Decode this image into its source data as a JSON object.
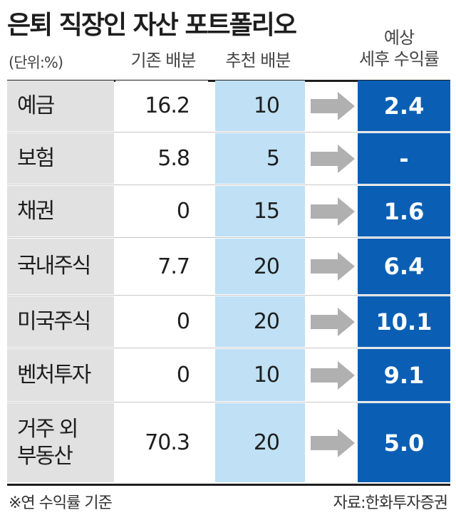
{
  "title": "은퇴 직장인 자산 포트폴리오",
  "unit": "(단위:%)",
  "headers": {
    "base": "기존 배분",
    "recommended": "추천 배분",
    "return_line1": "예상",
    "return_line2": "세후 수익률"
  },
  "note": "※연 수익률 기준",
  "source": "자료:한화투자증권",
  "colors": {
    "label_bg": "#e1e1e1",
    "recommended_bg": "#bfe0f5",
    "return_bg": "#0a5fb4",
    "arrow": "#b0b0b0"
  },
  "chart_data": {
    "type": "table",
    "columns": [
      "기존 배분",
      "추천 배분",
      "예상 세후 수익률"
    ],
    "rows": [
      {
        "label": "예금",
        "base": "16.2",
        "recommended": "10",
        "return": "2.4"
      },
      {
        "label": "보험",
        "base": "5.8",
        "recommended": "5",
        "return": "-"
      },
      {
        "label": "채권",
        "base": "0",
        "recommended": "15",
        "return": "1.6"
      },
      {
        "label": "국내주식",
        "base": "7.7",
        "recommended": "20",
        "return": "6.4"
      },
      {
        "label": "미국주식",
        "base": "0",
        "recommended": "20",
        "return": "10.1"
      },
      {
        "label": "벤처투자",
        "base": "0",
        "recommended": "10",
        "return": "9.1"
      },
      {
        "label": "거주 외\n부동산",
        "base": "70.3",
        "recommended": "20",
        "return": "5.0"
      }
    ]
  }
}
